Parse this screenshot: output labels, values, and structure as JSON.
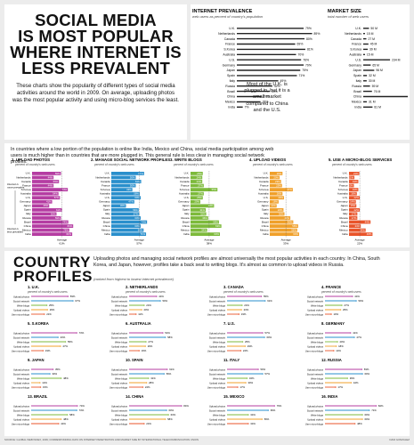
{
  "title": {
    "lines": [
      "SOCIAL MEDIA",
      "IS MOST POPULAR",
      "WHERE INTERNET IS",
      "LESS PREVALENT"
    ],
    "intro": "These charts show the popularity of different types of social media activities around the world in 2009. On average, uploading photos was the most popular activity and using micro-blog services the least."
  },
  "side_note": "Most of the U.K. is plugged in, but it is a small market compared to China and the U.S.",
  "activities": {
    "intro": "In countries where a low portion of the population is online like India, Mexico and China, social media participation among web users is much higher than in countries that are more plugged in. This general rule is less clear in managing social network profiles.",
    "annotation_top": "Internet is more prevalent",
    "annotation_bottom": "Internet is less prevalent",
    "average_label": "Average"
  },
  "country_profiles": {
    "heading": [
      "COUNTRY",
      "PROFILES"
    ],
    "intro": "Uploading photos and managing social network profiles are almost universally the most popular activities in each country. In China, South Korea, and Japan, however, profiles take a back seat to writing blogs. It's almost as common to upload videos in Russia.",
    "note": "(ranked from highest to lowest internet prevalence)",
    "subtitle": "percent of country's web users",
    "row_labels": [
      "Upload photos",
      "Social network",
      "Write blogs",
      "Upload videos",
      "Use micro-blogs"
    ]
  },
  "footer": {
    "source": "SOURCE: GLOBAL WEB INDEX, 2009; CORRESPONDING DATA ON INTERNET PENETRATION AND MARKET SIZE BY INTERNATIONAL TELECOMMUNICATION UNION",
    "credit": "DANI GONZALEZ"
  },
  "colors": {
    "purple": "#b53da2",
    "blue": "#2a8fcc",
    "green": "#7dba3b",
    "orange": "#f0a02a",
    "red": "#e9542a",
    "grey": "#9a9a9a",
    "dark": "#222222"
  },
  "chart_data": [
    {
      "type": "bar",
      "title": "INTERNET PREVALENCE",
      "subtitle": "web users as percent of country's population",
      "categories": [
        "U.K.",
        "Netherlands",
        "Canada",
        "France",
        "S.Korea",
        "Australia",
        "U.S.",
        "Germany",
        "Japan",
        "Spain",
        "Italy",
        "Russia",
        "Brazil",
        "China",
        "Mexico",
        "India"
      ],
      "values": [
        79,
        89,
        80,
        69,
        81,
        70,
        76,
        79,
        75,
        71,
        49,
        42,
        39,
        29,
        28,
        7
      ],
      "value_labels": [
        "79%",
        "89%",
        "80%",
        "69%",
        "81%",
        "70%",
        "76%",
        "79%",
        "75%",
        "71%",
        "49%",
        "42%",
        "39%",
        "29%",
        "28%",
        "7%"
      ]
    },
    {
      "type": "bar",
      "title": "MARKET SIZE",
      "subtitle": "total number of web users",
      "categories": [
        "U.K.",
        "Netherlands",
        "Canada",
        "France",
        "S.Korea",
        "Australia",
        "U.S.",
        "Germany",
        "Japan",
        "Spain",
        "Italy",
        "Russia",
        "Brazil",
        "China",
        "Mexico",
        "India"
      ],
      "values": [
        50,
        15,
        27,
        45,
        39,
        15,
        234,
        65,
        96,
        32,
        30,
        59,
        76,
        389,
        31,
        81
      ],
      "value_labels": [
        "50 M",
        "15 M",
        "27 M",
        "45 M",
        "39 M",
        "15 M",
        "234 M",
        "65 M",
        "96 M",
        "32 M",
        "30 M",
        "59 M",
        "76 M",
        "389 M",
        "31 M",
        "81 M"
      ]
    },
    {
      "type": "bar",
      "categories": [
        "U.K.",
        "Netherlands",
        "Canada",
        "France",
        "S.Korea",
        "Australia",
        "U.S.",
        "Germany",
        "Japan",
        "Spain",
        "Italy",
        "Russia",
        "Brazil",
        "China",
        "Mexico",
        "India"
      ],
      "panels": [
        {
          "title": "1. UPLOAD PHOTOS",
          "subtitle": "percent of country's web users",
          "values": [
            59,
            44,
            55,
            44,
            73,
            54,
            57,
            41,
            35,
            61,
            50,
            59,
            74,
            84,
            76,
            82
          ],
          "average": "61%"
        },
        {
          "title": "2. MANAGE SOCIAL NETWORK PROFILES",
          "subtitle": "percent of country's web users",
          "values": [
            67,
            50,
            61,
            50,
            43,
            58,
            60,
            47,
            30,
            56,
            57,
            60,
            73,
            60,
            66,
            71
          ],
          "average": "57%"
        },
        {
          "title": "3. WRITE BLOGS",
          "subtitle": "percent of country's web users",
          "values": [
            25,
            24,
            24,
            27,
            55,
            27,
            25,
            20,
            48,
            31,
            32,
            36,
            58,
            63,
            34,
            60
          ],
          "average": "38%"
        },
        {
          "title": "4. UPLOAD VIDEOS",
          "subtitle": "percent of country's web users",
          "values": [
            26,
            20,
            23,
            25,
            47,
            26,
            29,
            18,
            14,
            28,
            30,
            42,
            48,
            58,
            56,
            60
          ],
          "average": "33%"
        },
        {
          "title": "5. USE A MICRO-BLOG SERVICES",
          "subtitle": "percent of country's web users",
          "values": [
            21,
            11,
            19,
            10,
            19,
            16,
            22,
            14,
            15,
            22,
            17,
            17,
            44,
            24,
            34,
            48
          ],
          "average": "22%"
        }
      ]
    }
  ]
}
